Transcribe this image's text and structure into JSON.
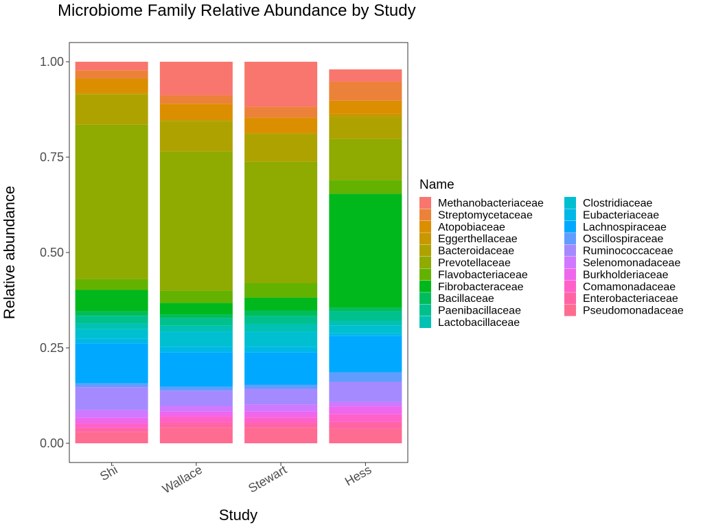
{
  "chart_data": {
    "type": "bar",
    "stacked": true,
    "title": "Microbiome Family Relative Abundance by Study",
    "xlabel": "Study",
    "ylabel": "Relative abundance",
    "ylim": [
      0,
      1
    ],
    "yticks": [
      0,
      0.25,
      0.5,
      0.75,
      1
    ],
    "ytick_labels": [
      "0.00",
      "0.25",
      "0.50",
      "0.75",
      "1.00"
    ],
    "categories": [
      "Shi",
      "Wallace",
      "Stewart",
      "Hess"
    ],
    "grid": false,
    "legend_title": "Name",
    "legend_position": "right",
    "series": [
      {
        "name": "Methanobacteriaceae",
        "color": "#F8766D",
        "values": [
          0.022,
          0.088,
          0.118,
          0.032
        ]
      },
      {
        "name": "Streptomycetaceae",
        "color": "#EC8239",
        "values": [
          0.022,
          0.022,
          0.028,
          0.05
        ]
      },
      {
        "name": "Atopobiaceae",
        "color": "#DB8E00",
        "values": [
          0.038,
          0.042,
          0.04,
          0.034
        ]
      },
      {
        "name": "Eggerthellaceae",
        "color": "#C79800",
        "values": [
          0.003,
          0.003,
          0.003,
          0.008
        ]
      },
      {
        "name": "Bacteroidaceae",
        "color": "#AEA200",
        "values": [
          0.08,
          0.08,
          0.073,
          0.058
        ]
      },
      {
        "name": "Prevotellaceae",
        "color": "#8FAA00",
        "values": [
          0.405,
          0.365,
          0.318,
          0.108
        ]
      },
      {
        "name": "Flavobacteriaceae",
        "color": "#64B200",
        "values": [
          0.028,
          0.032,
          0.038,
          0.036
        ]
      },
      {
        "name": "Fibrobacteraceae",
        "color": "#00B81B",
        "values": [
          0.056,
          0.03,
          0.034,
          0.298
        ]
      },
      {
        "name": "Bacillaceae",
        "color": "#00BD5C",
        "values": [
          0.012,
          0.01,
          0.015,
          0.01
        ]
      },
      {
        "name": "Paenibacillaceae",
        "color": "#00C08E",
        "values": [
          0.02,
          0.02,
          0.02,
          0.025
        ]
      },
      {
        "name": "Lactobacillaceae",
        "color": "#00C1B2",
        "values": [
          0.015,
          0.015,
          0.02,
          0.012
        ]
      },
      {
        "name": "Clostridiaceae",
        "color": "#00BFD1",
        "values": [
          0.025,
          0.04,
          0.04,
          0.02
        ]
      },
      {
        "name": "Eubacteriaceae",
        "color": "#00B8E7",
        "values": [
          0.012,
          0.015,
          0.015,
          0.008
        ]
      },
      {
        "name": "Lachnospiraceae",
        "color": "#00A9FF",
        "values": [
          0.105,
          0.09,
          0.085,
          0.095
        ]
      },
      {
        "name": "Oscillospiraceae",
        "color": "#619CFF",
        "values": [
          0.01,
          0.01,
          0.01,
          0.025
        ]
      },
      {
        "name": "Ruminococcaceae",
        "color": "#A58AFF",
        "values": [
          0.06,
          0.04,
          0.042,
          0.053
        ]
      },
      {
        "name": "Selenomonadaceae",
        "color": "#D078FF",
        "values": [
          0.02,
          0.015,
          0.018,
          0.012
        ]
      },
      {
        "name": "Burkholderiaceae",
        "color": "#EF67EB",
        "values": [
          0.015,
          0.013,
          0.015,
          0.02
        ]
      },
      {
        "name": "Comamonadaceae",
        "color": "#FF61C9",
        "values": [
          0.012,
          0.015,
          0.015,
          0.02
        ]
      },
      {
        "name": "Enterobacteriaceae",
        "color": "#FF65A5",
        "values": [
          0.01,
          0.015,
          0.013,
          0.018
        ]
      },
      {
        "name": "Pseudomonadaceae",
        "color": "#FF6C91",
        "values": [
          0.03,
          0.04,
          0.04,
          0.038
        ]
      }
    ]
  }
}
